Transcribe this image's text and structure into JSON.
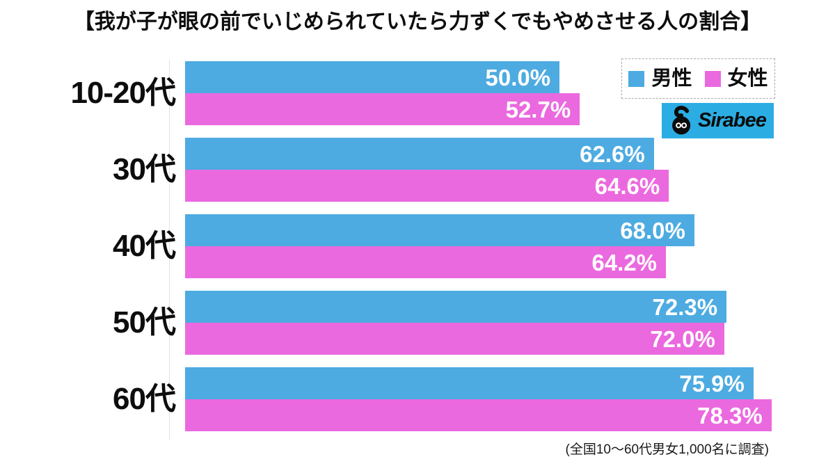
{
  "title": "【我が子が眼の前でいじめられていたら力ずくでもやめさせる人の割合】",
  "footnote": "(全国10〜60代男女1,000名に調査)",
  "logo": {
    "text": "Sirabee",
    "bg_color": "#2bade4",
    "icon": "sirabee-bee-icon"
  },
  "legend": {
    "male_label": "男性",
    "female_label": "女性"
  },
  "colors": {
    "male_bar": "#4dabe1",
    "female_bar": "#eb69df",
    "value_text": "#ffffff",
    "title_text": "#0d0d0d"
  },
  "chart_data": {
    "type": "bar",
    "orientation": "horizontal",
    "title": "【我が子が眼の前でいじめられていたら力ずくでもやめさせる人の割合】",
    "categories": [
      "10-20代",
      "30代",
      "40代",
      "50代",
      "60代"
    ],
    "series": [
      {
        "name": "男性",
        "color": "#4dabe1",
        "values": [
          50.0,
          62.6,
          68.0,
          72.3,
          75.9
        ]
      },
      {
        "name": "女性",
        "color": "#eb69df",
        "values": [
          52.7,
          64.6,
          64.2,
          72.0,
          78.3
        ]
      }
    ],
    "value_suffix": "%",
    "value_labels": "inside-end",
    "xlim": [
      0,
      80
    ],
    "grid": false,
    "legend_position": "top-right",
    "footnote": "(全国10〜60代男女1,000名に調査)"
  }
}
